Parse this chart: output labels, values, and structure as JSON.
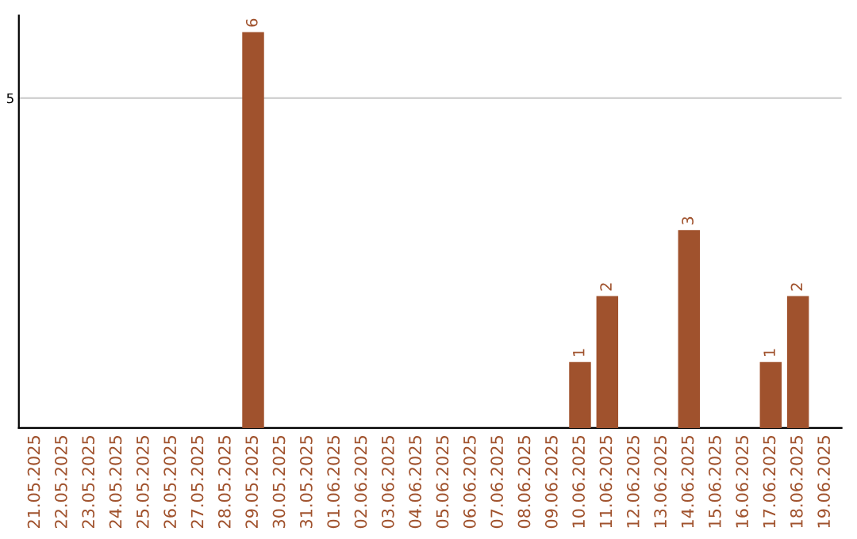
{
  "chart_data": {
    "type": "bar",
    "categories": [
      "21.05.2025",
      "22.05.2025",
      "23.05.2025",
      "24.05.2025",
      "25.05.2025",
      "26.05.2025",
      "27.05.2025",
      "28.05.2025",
      "29.05.2025",
      "30.05.2025",
      "31.05.2025",
      "01.06.2025",
      "02.06.2025",
      "03.06.2025",
      "04.06.2025",
      "05.06.2025",
      "06.06.2025",
      "07.06.2025",
      "08.06.2025",
      "09.06.2025",
      "10.06.2025",
      "11.06.2025",
      "12.06.2025",
      "13.06.2025",
      "14.06.2025",
      "15.06.2025",
      "16.06.2025",
      "17.06.2025",
      "18.06.2025",
      "19.06.2025"
    ],
    "values": [
      0,
      0,
      0,
      0,
      0,
      0,
      0,
      0,
      6,
      0,
      0,
      0,
      0,
      0,
      0,
      0,
      0,
      0,
      0,
      0,
      1,
      2,
      0,
      0,
      3,
      0,
      0,
      1,
      2,
      0
    ],
    "value_labels": [
      null,
      null,
      null,
      null,
      null,
      null,
      null,
      null,
      "6",
      null,
      null,
      null,
      null,
      null,
      null,
      null,
      null,
      null,
      null,
      null,
      "1",
      "2",
      null,
      null,
      "3",
      null,
      null,
      "1",
      "2",
      null
    ],
    "color": "#a0522d",
    "ylim": [
      0,
      6.25
    ],
    "yticks": [
      5
    ],
    "grid": "y"
  }
}
